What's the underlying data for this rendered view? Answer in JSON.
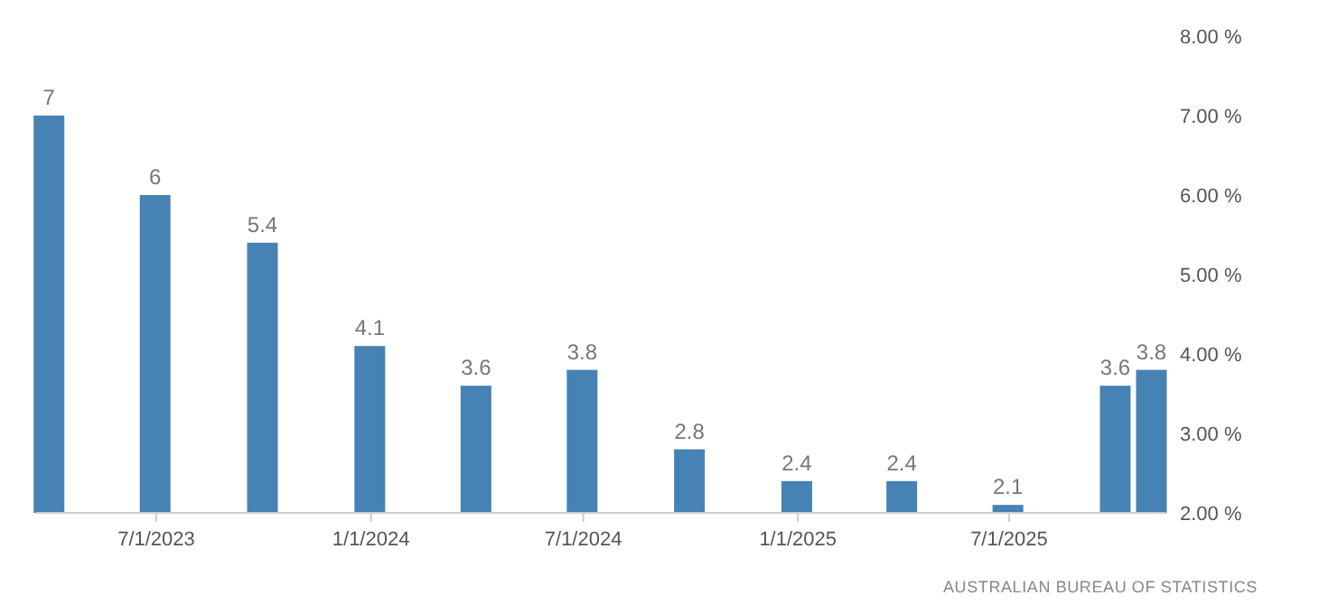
{
  "chart_data": {
    "type": "bar",
    "x": [
      "2023-03-31",
      "2023-06-30",
      "2023-09-30",
      "2023-12-31",
      "2024-03-31",
      "2024-06-30",
      "2024-09-30",
      "2024-12-31",
      "2025-03-31",
      "2025-06-30",
      "2025-09-30",
      "2025-10-31"
    ],
    "values": [
      7,
      6,
      5.4,
      4.1,
      3.6,
      3.8,
      2.8,
      2.4,
      2.4,
      2.1,
      3.6,
      3.8
    ],
    "color": "#4682b4",
    "data_labels": true,
    "xlim": [
      "2023-03-20",
      "2025-11-12"
    ],
    "xticks": [
      {
        "value": "2023-07-01",
        "label": "7/1/2023"
      },
      {
        "value": "2024-01-01",
        "label": "1/1/2024"
      },
      {
        "value": "2024-07-01",
        "label": "7/1/2024"
      },
      {
        "value": "2025-01-01",
        "label": "1/1/2025"
      },
      {
        "value": "2025-07-01",
        "label": "7/1/2025"
      }
    ],
    "ylim": [
      2,
      8
    ],
    "yticks": [
      {
        "value": 2,
        "label": "2.00 %"
      },
      {
        "value": 3,
        "label": "3.00 %"
      },
      {
        "value": 4,
        "label": "4.00 %"
      },
      {
        "value": 5,
        "label": "5.00 %"
      },
      {
        "value": 6,
        "label": "6.00 %"
      },
      {
        "value": 7,
        "label": "7.00 %"
      },
      {
        "value": 8,
        "label": "8.00 %"
      }
    ],
    "annotations": [
      "AUSTRALIAN BUREAU OF STATISTICS"
    ]
  }
}
